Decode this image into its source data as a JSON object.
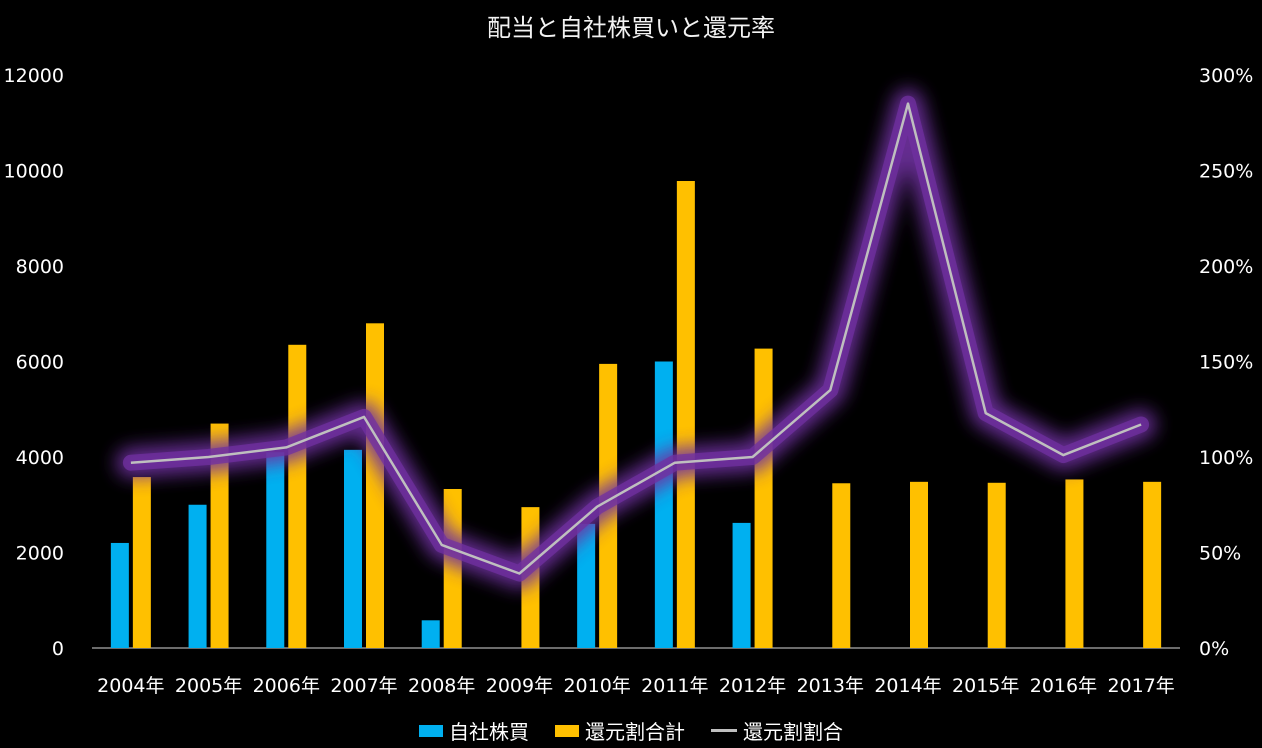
{
  "chart_data": {
    "type": "bar",
    "title": "配当と自社株買いと還元率",
    "categories": [
      "2004年",
      "2005年",
      "2006年",
      "2007年",
      "2008年",
      "2009年",
      "2010年",
      "2011年",
      "2012年",
      "2013年",
      "2014年",
      "2015年",
      "2016年",
      "2017年"
    ],
    "y_left": {
      "ylim": [
        0,
        12000
      ],
      "ticks": [
        "0",
        "2000",
        "4000",
        "6000",
        "8000",
        "10000",
        "12000"
      ]
    },
    "y_right": {
      "ylim": [
        0,
        3
      ],
      "ticks": [
        "0%",
        "50%",
        "100%",
        "150%",
        "200%",
        "250%",
        "300%"
      ]
    },
    "series": [
      {
        "name": "自社株買",
        "type": "bar",
        "axis": "left",
        "color": "#00b0f0",
        "values": [
          2200,
          3000,
          4100,
          4150,
          580,
          0,
          2600,
          6000,
          2620,
          0,
          0,
          0,
          0,
          0
        ]
      },
      {
        "name": "還元割合計",
        "type": "bar",
        "axis": "left",
        "color": "#ffc000",
        "values": [
          3580,
          4700,
          6350,
          6800,
          3330,
          2950,
          5950,
          9780,
          6270,
          3450,
          3480,
          3460,
          3530,
          3480
        ]
      },
      {
        "name": "還元割割合",
        "type": "line",
        "axis": "right",
        "color": "#bfbfbf",
        "glow": "#7030a0",
        "values": [
          0.97,
          1.0,
          1.05,
          1.21,
          0.54,
          0.39,
          0.74,
          0.97,
          1.0,
          1.35,
          2.85,
          1.23,
          1.01,
          1.17
        ]
      }
    ],
    "legend_position": "bottom",
    "grid": false
  }
}
